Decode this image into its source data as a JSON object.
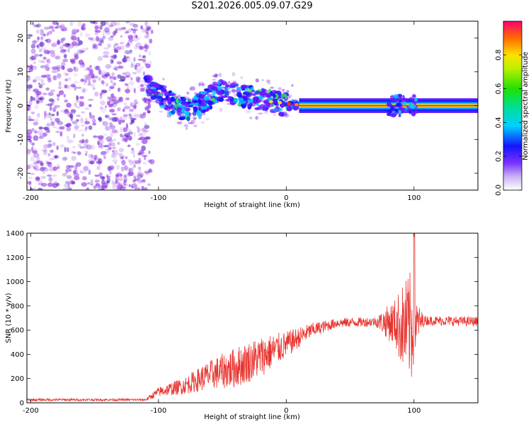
{
  "title": "S201.2026.005.09.07.G29",
  "colors": {
    "snr_line": "#e8332e",
    "spectrum_noise": "#8a2be2",
    "frame": "#000000"
  },
  "chart_data": [
    {
      "type": "heatmap",
      "name": "spectrogram",
      "xlabel": "Height of straight line (km)",
      "ylabel": "Frequency (Hz)",
      "xlim": [
        -203,
        150
      ],
      "ylim": [
        -25,
        25
      ],
      "xticks": [
        -200,
        -100,
        0,
        100
      ],
      "xtick_labels": [
        "-200",
        "-100",
        "0",
        "100"
      ],
      "yticks": [
        20,
        10,
        0,
        -10,
        -20
      ],
      "ytick_labels": [
        "20",
        "10",
        "0",
        "-10",
        "-20"
      ],
      "colorbar": {
        "label": "Normalized spectral amplitude",
        "range": [
          0,
          1
        ],
        "ticks": [
          0.0,
          0.2,
          0.4,
          0.6,
          0.8
        ],
        "tick_labels": [
          "0.0",
          "0.2",
          "0.4",
          "0.6",
          "0.8"
        ]
      },
      "features": {
        "noise_region_x": [
          -203,
          -105
        ],
        "trace": [
          {
            "x": -110,
            "f": 6.0
          },
          {
            "x": -100,
            "f": 3.5
          },
          {
            "x": -90,
            "f": 1.0
          },
          {
            "x": -80,
            "f": -1.0
          },
          {
            "x": -72,
            "f": -0.5
          },
          {
            "x": -65,
            "f": 1.0
          },
          {
            "x": -58,
            "f": 3.0
          },
          {
            "x": -50,
            "f": 5.0
          },
          {
            "x": -42,
            "f": 4.0
          },
          {
            "x": -35,
            "f": 3.0
          },
          {
            "x": -25,
            "f": 2.0
          },
          {
            "x": -15,
            "f": 1.5
          },
          {
            "x": -8,
            "f": 0.8
          },
          {
            "x": 0,
            "f": 0.3
          },
          {
            "x": 10,
            "f": 0.1
          },
          {
            "x": 100,
            "f": 0.0
          },
          {
            "x": 150,
            "f": 0.2
          }
        ]
      }
    },
    {
      "type": "line",
      "name": "snr",
      "xlabel": "Height of straight line (km)",
      "ylabel": "SNR (10 * v/v)",
      "xlim": [
        -203,
        150
      ],
      "ylim": [
        0,
        1400
      ],
      "xticks": [
        -200,
        -100,
        0,
        100
      ],
      "xtick_labels": [
        "-200",
        "-100",
        "0",
        "100"
      ],
      "yticks": [
        0,
        200,
        400,
        600,
        800,
        1000,
        1200,
        1400
      ],
      "ytick_labels": [
        "0",
        "200",
        "400",
        "600",
        "800",
        "1000",
        "1200",
        "1400"
      ],
      "envelope": [
        {
          "x": -203,
          "mean": 25,
          "amp": 10
        },
        {
          "x": -110,
          "mean": 25,
          "amp": 10
        },
        {
          "x": -100,
          "mean": 90,
          "amp": 40
        },
        {
          "x": -80,
          "mean": 140,
          "amp": 70
        },
        {
          "x": -60,
          "mean": 230,
          "amp": 120
        },
        {
          "x": -40,
          "mean": 290,
          "amp": 170
        },
        {
          "x": -20,
          "mean": 380,
          "amp": 170
        },
        {
          "x": 0,
          "mean": 480,
          "amp": 110
        },
        {
          "x": 20,
          "mean": 600,
          "amp": 60
        },
        {
          "x": 40,
          "mean": 660,
          "amp": 40
        },
        {
          "x": 70,
          "mean": 670,
          "amp": 40
        },
        {
          "x": 85,
          "mean": 660,
          "amp": 200
        },
        {
          "x": 92,
          "mean": 620,
          "amp": 380
        },
        {
          "x": 98,
          "mean": 620,
          "amp": 480
        },
        {
          "x": 102,
          "mean": 660,
          "amp": 180
        },
        {
          "x": 108,
          "mean": 680,
          "amp": 40
        },
        {
          "x": 150,
          "mean": 670,
          "amp": 40
        }
      ],
      "peak": {
        "x": 100,
        "value": 1400
      }
    }
  ]
}
